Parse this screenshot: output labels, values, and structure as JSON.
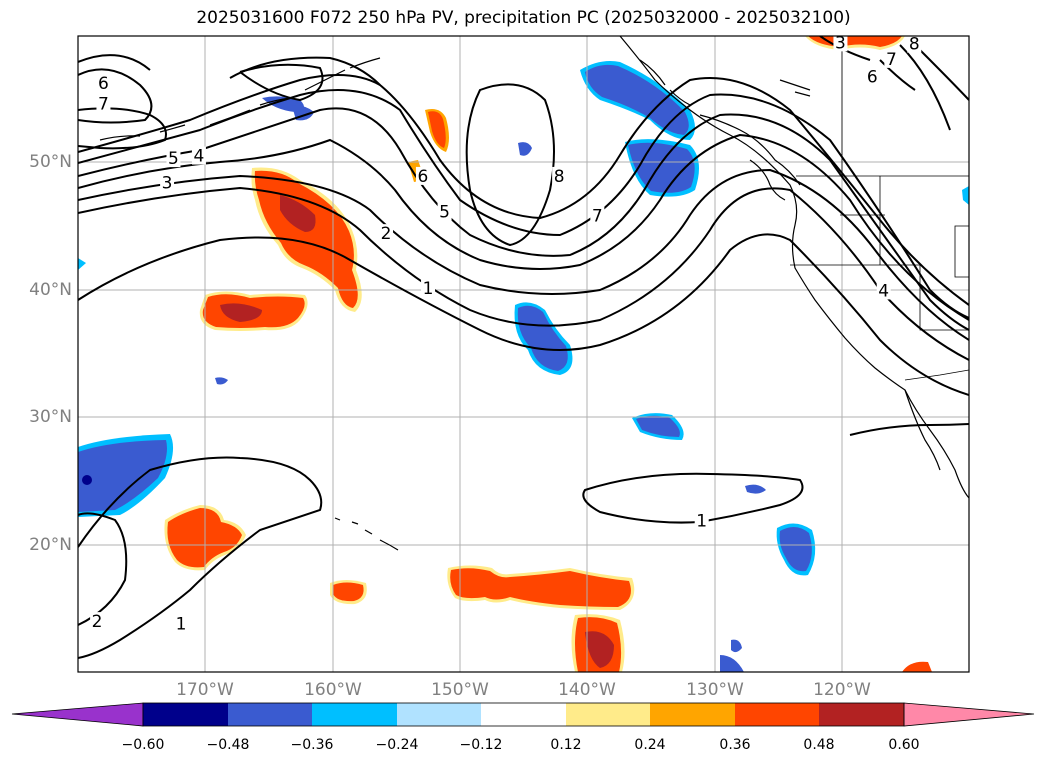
{
  "title": "2025031600 F072 250 hPa PV, precipitation PC (2025032000 - 2025032100)",
  "map": {
    "lon_range": [
      -180,
      -110
    ],
    "lat_range": [
      10,
      60
    ],
    "gridlines": true,
    "lat_ticks": [
      {
        "label": "50°N",
        "value": 50
      },
      {
        "label": "40°N",
        "value": 40
      },
      {
        "label": "30°N",
        "value": 30
      },
      {
        "label": "20°N",
        "value": 20
      }
    ],
    "lon_ticks": [
      {
        "label": "170°W",
        "value": -170
      },
      {
        "label": "160°W",
        "value": -160
      },
      {
        "label": "150°W",
        "value": -150
      },
      {
        "label": "140°W",
        "value": -140
      },
      {
        "label": "130°W",
        "value": -130
      },
      {
        "label": "120°W",
        "value": -120
      }
    ],
    "contour_labels": [
      {
        "text": "6",
        "lon": -178,
        "lat": 56.3
      },
      {
        "text": "7",
        "lon": -178,
        "lat": 54.7
      },
      {
        "text": "5",
        "lon": -172.5,
        "lat": 50.4
      },
      {
        "text": "4",
        "lon": -170.5,
        "lat": 50.6
      },
      {
        "text": "3",
        "lon": -173,
        "lat": 48.5
      },
      {
        "text": "2",
        "lon": -155.8,
        "lat": 44.5
      },
      {
        "text": "1",
        "lon": -152.5,
        "lat": 40.2
      },
      {
        "text": "5",
        "lon": -151.2,
        "lat": 46.2
      },
      {
        "text": "6",
        "lon": -152.9,
        "lat": 49.0
      },
      {
        "text": "8",
        "lon": -142.2,
        "lat": 49.0
      },
      {
        "text": "7",
        "lon": -139.2,
        "lat": 45.9
      },
      {
        "text": "1",
        "lon": -131.0,
        "lat": 21.9
      },
      {
        "text": "2",
        "lon": -178.5,
        "lat": 14.0
      },
      {
        "text": "1",
        "lon": -171.9,
        "lat": 13.8
      },
      {
        "text": "3",
        "lon": -120.1,
        "lat": 59.5
      },
      {
        "text": "6",
        "lon": -117.6,
        "lat": 56.8
      },
      {
        "text": "7",
        "lon": -116.1,
        "lat": 58.2
      },
      {
        "text": "8",
        "lon": -114.3,
        "lat": 59.4
      },
      {
        "text": "4",
        "lon": -116.7,
        "lat": 40.0
      }
    ]
  },
  "colorbar": {
    "colors": [
      "#9932cc",
      "#00008b",
      "#3a5bd0",
      "#00bfff",
      "#b0e2ff",
      "#ffffff",
      "#ffeb8a",
      "#ffa500",
      "#ff4500",
      "#b22222",
      "#ff88a8"
    ],
    "tick_labels": [
      "−0.60",
      "−0.48",
      "−0.36",
      "−0.24",
      "−0.12",
      "0.12",
      "0.24",
      "0.36",
      "0.48",
      "0.60"
    ]
  }
}
